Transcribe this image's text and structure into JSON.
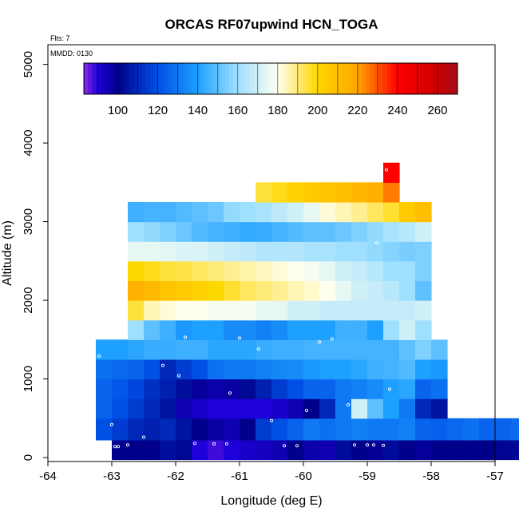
{
  "chart_data": {
    "type": "heatmap",
    "title": "ORCAS RF07upwind HCN_TOGA",
    "annotations": {
      "flights": "Flts: 7",
      "date": "MMDD: 0130"
    },
    "xlabel": "Longitude (deg E)",
    "ylabel": "Altitude (m)",
    "xlim": [
      -64,
      -57
    ],
    "ylim": [
      -50,
      5250
    ],
    "xticks": [
      -64,
      -63,
      -62,
      -61,
      -60,
      -59,
      -58,
      -57
    ],
    "yticks": [
      0,
      1000,
      2000,
      3000,
      4000,
      5000
    ],
    "colorbar": {
      "range": [
        83,
        270
      ],
      "ticks": [
        100,
        120,
        140,
        160,
        180,
        200,
        220,
        240,
        260
      ],
      "stops": [
        [
          83,
          "#8A2BE2"
        ],
        [
          90,
          "#1E00D8"
        ],
        [
          100,
          "#00008B"
        ],
        [
          120,
          "#0050E6"
        ],
        [
          140,
          "#1EA0FF"
        ],
        [
          160,
          "#A0E0FF"
        ],
        [
          180,
          "#FFFFF0"
        ],
        [
          200,
          "#FFD700"
        ],
        [
          220,
          "#FFA500"
        ],
        [
          240,
          "#FF0000"
        ],
        [
          260,
          "#CC0000"
        ],
        [
          270,
          "#A0101A"
        ]
      ]
    },
    "cell_width_deg": 0.25,
    "rows": [
      {
        "y0": -25,
        "y1": 225,
        "x0": -63.0,
        "values": [
          100,
          100,
          100,
          104,
          102,
          90,
          88,
          90,
          92,
          93,
          95,
          100,
          96,
          95,
          103,
          100,
          99,
          103,
          100,
          98,
          100,
          100,
          100,
          100,
          101,
          102,
          100,
          100,
          103,
          100,
          104,
          105,
          100,
          100,
          100,
          103,
          100,
          102,
          100,
          100,
          100,
          102,
          100,
          100,
          100,
          100,
          100,
          100,
          100,
          98,
          100,
          100,
          100,
          98,
          100,
          100,
          100,
          98,
          100,
          100,
          100,
          100,
          100,
          100,
          100,
          98
        ]
      },
      {
        "y0": 225,
        "y1": 500,
        "x0": -63.25,
        "values": [
          120,
          115,
          110,
          108,
          110,
          105,
          100,
          97,
          95,
          100,
          115,
          120,
          125,
          130,
          128,
          130,
          132,
          130,
          130,
          132,
          125,
          124,
          126,
          128,
          125,
          125,
          127,
          130,
          128,
          126,
          125,
          123,
          118,
          115,
          110,
          108,
          100,
          95,
          92,
          93,
          95,
          97,
          98,
          96,
          94,
          95,
          97,
          96,
          98,
          95,
          94,
          95,
          98,
          96,
          95,
          94,
          95,
          96,
          100,
          96,
          100,
          100,
          105,
          100,
          106,
          110
        ]
      },
      {
        "y0": 500,
        "y1": 750,
        "x0": -63.25,
        "values": [
          125,
          120,
          115,
          110,
          105,
          95,
          92,
          90,
          90,
          90,
          90,
          92,
          95,
          100,
          110,
          130,
          170,
          150,
          140,
          130,
          110,
          105
        ]
      },
      {
        "y0": 750,
        "y1": 1000,
        "x0": -63.25,
        "values": [
          125,
          122,
          118,
          112,
          108,
          104,
          98,
          96,
          97,
          102,
          108,
          115,
          120,
          125,
          125,
          130,
          132,
          135,
          140,
          142,
          125,
          128
        ]
      },
      {
        "y0": 1000,
        "y1": 1250,
        "x0": -63.25,
        "values": [
          128,
          126,
          125,
          120,
          110,
          115,
          120,
          128,
          130,
          130,
          132,
          134,
          135,
          138,
          140,
          140,
          142,
          145,
          146,
          148,
          140,
          138
        ]
      },
      {
        "y0": 1250,
        "y1": 1500,
        "x0": -63.25,
        "values": [
          140,
          140,
          142,
          144,
          144,
          145,
          145,
          142,
          142,
          142,
          144,
          145,
          145,
          146,
          146,
          146,
          146,
          146,
          146,
          150,
          155,
          150
        ]
      },
      {
        "y0": 1500,
        "y1": 1750,
        "x0": -62.75,
        "values": [
          160,
          150,
          145,
          138,
          140,
          140,
          135,
          135,
          132,
          135,
          140,
          140,
          140,
          145,
          145,
          140,
          160,
          170,
          160
        ]
      },
      {
        "y0": 1750,
        "y1": 2000,
        "x0": -62.75,
        "values": [
          195,
          185,
          182,
          180,
          180,
          178,
          178,
          178,
          175,
          175,
          170,
          170,
          168,
          168,
          168,
          168,
          168,
          168,
          170
        ]
      },
      {
        "y0": 2000,
        "y1": 2250,
        "x0": -62.75,
        "values": [
          215,
          212,
          208,
          205,
          202,
          200,
          196,
          192,
          190,
          188,
          185,
          183,
          180,
          175,
          170,
          168,
          165,
          160,
          150
        ]
      },
      {
        "y0": 2250,
        "y1": 2500,
        "x0": -62.75,
        "values": [
          200,
          198,
          195,
          194,
          192,
          190,
          188,
          186,
          184,
          182,
          180,
          178,
          175,
          170,
          168,
          165,
          160,
          160,
          155
        ]
      },
      {
        "y0": 2500,
        "y1": 2750,
        "x0": -62.75,
        "values": [
          175,
          175,
          174,
          172,
          172,
          170,
          168,
          166,
          164,
          164,
          164,
          162,
          162,
          160,
          160,
          158,
          156,
          154,
          155
        ]
      },
      {
        "y0": 2750,
        "y1": 3000,
        "x0": -62.75,
        "values": [
          160,
          158,
          155,
          152,
          148,
          146,
          145,
          143,
          144,
          146,
          148,
          150,
          150,
          152,
          155,
          158,
          162,
          165,
          170
        ]
      },
      {
        "y0": 3000,
        "y1": 3250,
        "x0": -62.75,
        "values": [
          145,
          146,
          146,
          148,
          150,
          152,
          158,
          160,
          162,
          166,
          170,
          175,
          182,
          185,
          188,
          192,
          196,
          205,
          210
        ]
      },
      {
        "y0": 3250,
        "y1": 3500,
        "x0": -60.75,
        "values": [
          195,
          198,
          202,
          205,
          208,
          210,
          213,
          216,
          225
        ]
      },
      {
        "y0": 3500,
        "y1": 3750,
        "x0": -58.75,
        "values": [
          240
        ]
      }
    ],
    "points": [
      [
        -62.95,
        140
      ],
      [
        -62.9,
        140
      ],
      [
        -62.75,
        160
      ],
      [
        -62.5,
        260
      ],
      [
        -61.7,
        180
      ],
      [
        -61.4,
        175
      ],
      [
        -61.2,
        175
      ],
      [
        -60.3,
        150
      ],
      [
        -60.1,
        150
      ],
      [
        -59.2,
        160
      ],
      [
        -59.0,
        160
      ],
      [
        -58.9,
        160
      ],
      [
        -58.75,
        155
      ],
      [
        -63.0,
        420
      ],
      [
        -62.2,
        1170
      ],
      [
        -61.95,
        1040
      ],
      [
        -61.15,
        820
      ],
      [
        -60.5,
        470
      ],
      [
        -59.95,
        600
      ],
      [
        -59.3,
        670
      ],
      [
        -58.65,
        870
      ],
      [
        -63.2,
        1290
      ],
      [
        -61.85,
        1530
      ],
      [
        -61.0,
        1520
      ],
      [
        -60.7,
        1380
      ],
      [
        -59.75,
        1470
      ],
      [
        -59.55,
        1510
      ],
      [
        -62.9,
        3140
      ],
      [
        -58.7,
        3660
      ],
      [
        -58.85,
        2730
      ],
      [
        -63.0,
        2180
      ]
    ]
  }
}
